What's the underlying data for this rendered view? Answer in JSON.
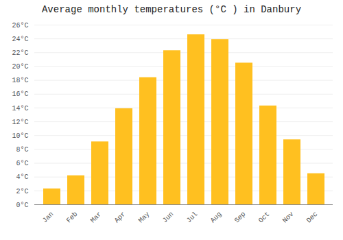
{
  "chart_data": {
    "type": "bar",
    "title": "Average monthly temperatures (°C ) in Danbury",
    "categories": [
      "Jan",
      "Feb",
      "Mar",
      "Apr",
      "May",
      "Jun",
      "Jul",
      "Aug",
      "Sep",
      "Oct",
      "Nov",
      "Dec"
    ],
    "values": [
      2.3,
      4.2,
      9.1,
      13.9,
      18.4,
      22.3,
      24.6,
      23.9,
      20.5,
      14.3,
      9.4,
      4.5
    ],
    "color": "#FFC020",
    "ylim": [
      0,
      26
    ],
    "yticks": [
      {
        "value": 0,
        "label": "0°C"
      },
      {
        "value": 2,
        "label": "2°C"
      },
      {
        "value": 4,
        "label": "4°C"
      },
      {
        "value": 6,
        "label": "6°C"
      },
      {
        "value": 8,
        "label": "8°C"
      },
      {
        "value": 10,
        "label": "10°C"
      },
      {
        "value": 12,
        "label": "12°C"
      },
      {
        "value": 14,
        "label": "14°C"
      },
      {
        "value": 16,
        "label": "16°C"
      },
      {
        "value": 18,
        "label": "18°C"
      },
      {
        "value": 20,
        "label": "20°C"
      },
      {
        "value": 22,
        "label": "22°C"
      },
      {
        "value": 24,
        "label": "24°C"
      },
      {
        "value": 26,
        "label": "26°C"
      }
    ],
    "grid": true
  }
}
